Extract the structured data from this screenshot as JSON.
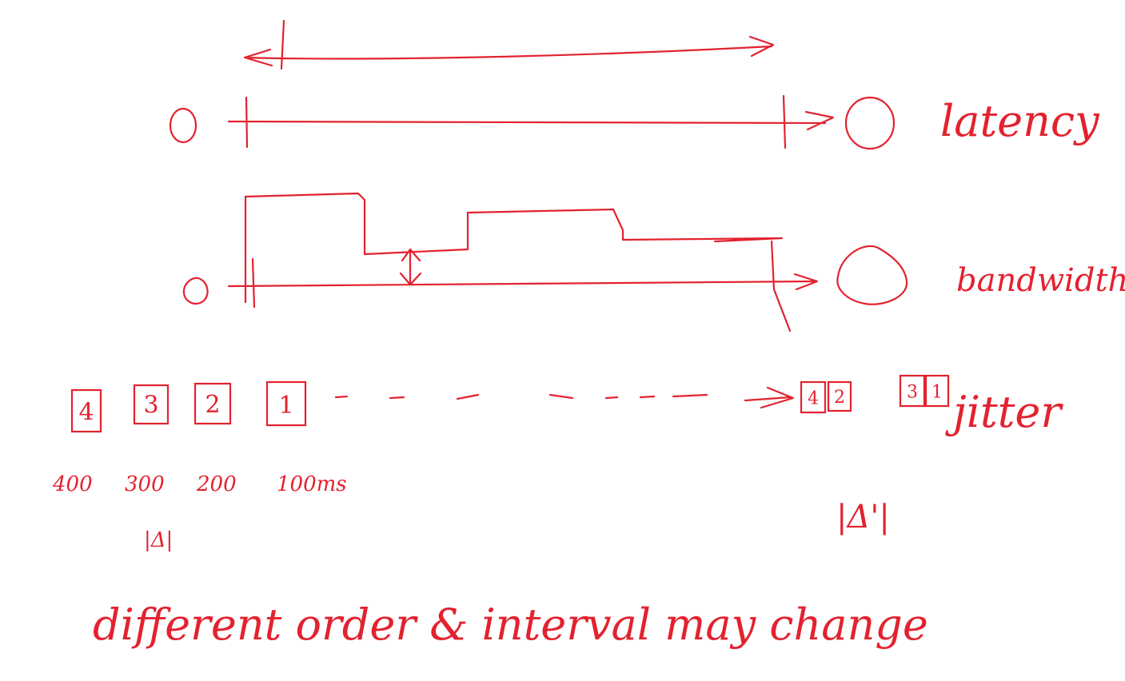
{
  "ink_color": "#e3222f",
  "background": "#ffffff",
  "labels": {
    "latency": "latency",
    "bandwidth": "bandwidth",
    "jitter": "jitter",
    "bottom": "different order & interval may change"
  },
  "packets_sent": [
    "4",
    "3",
    "2",
    "1"
  ],
  "packets_received": [
    "4",
    "2",
    "3",
    "1"
  ],
  "timings": [
    "400",
    "300",
    "200",
    "100ms"
  ],
  "delta_note": "|Δ|",
  "jitter_delta": "|Δ'|"
}
